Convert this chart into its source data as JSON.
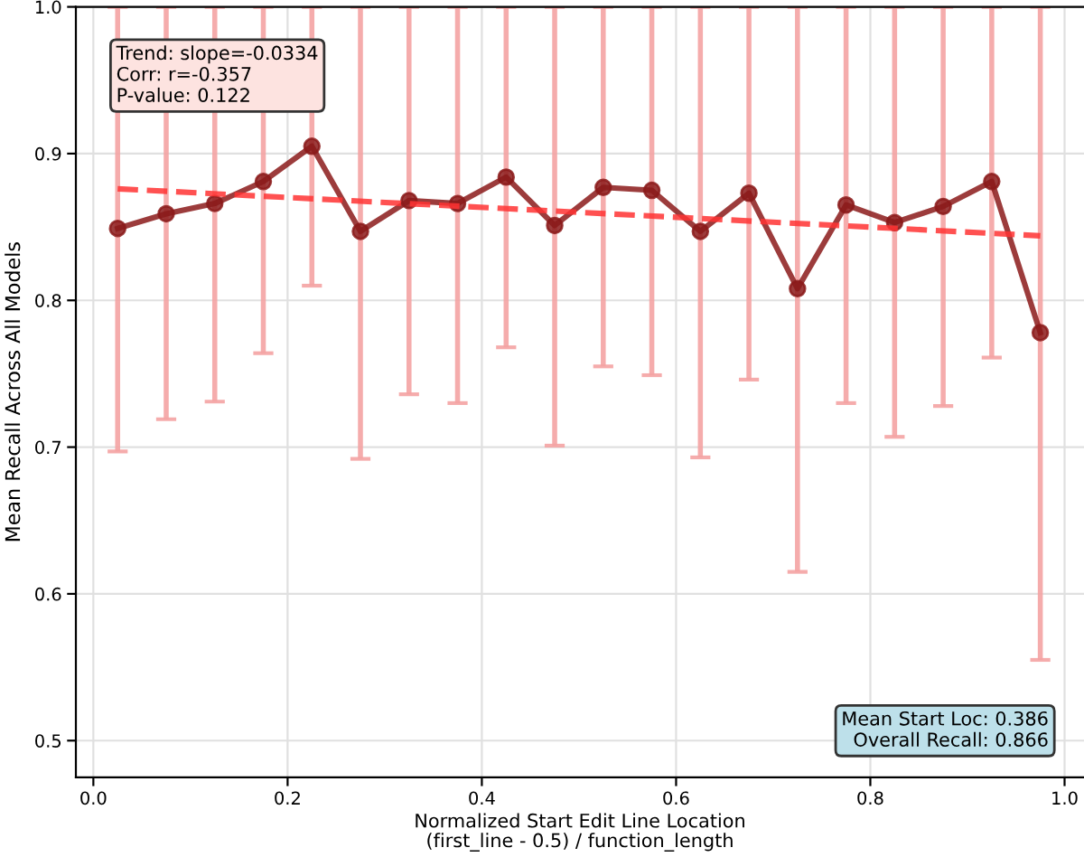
{
  "chart_data": {
    "type": "line",
    "xlabel": "Normalized Start Edit Line Location\n(first_line - 0.5) / function_length",
    "ylabel": "Mean Recall Across All Models",
    "x": [
      0.025,
      0.075,
      0.125,
      0.175,
      0.225,
      0.275,
      0.325,
      0.375,
      0.425,
      0.475,
      0.525,
      0.575,
      0.625,
      0.675,
      0.725,
      0.775,
      0.825,
      0.875,
      0.925,
      0.975
    ],
    "series": [
      {
        "color": "#8b1a1a",
        "marker": "circle",
        "line_style": "solid",
        "values": [
          0.849,
          0.859,
          0.866,
          0.881,
          0.905,
          0.847,
          0.868,
          0.866,
          0.884,
          0.851,
          0.877,
          0.875,
          0.847,
          0.873,
          0.808,
          0.865,
          0.853,
          0.864,
          0.881,
          0.778
        ],
        "errors": [
          [
            0.697,
            1.0
          ],
          [
            0.719,
            1.0
          ],
          [
            0.731,
            1.0
          ],
          [
            0.764,
            1.0
          ],
          [
            0.81,
            1.0
          ],
          [
            0.692,
            1.0
          ],
          [
            0.736,
            1.0
          ],
          [
            0.73,
            1.0
          ],
          [
            0.768,
            1.0
          ],
          [
            0.701,
            1.0
          ],
          [
            0.755,
            1.0
          ],
          [
            0.749,
            1.0
          ],
          [
            0.693,
            1.0
          ],
          [
            0.746,
            1.0
          ],
          [
            0.615,
            1.0
          ],
          [
            0.73,
            1.0
          ],
          [
            0.707,
            1.0
          ],
          [
            0.728,
            1.0
          ],
          [
            0.761,
            1.0
          ],
          [
            0.555,
            1.0
          ]
        ]
      },
      {
        "type": "line",
        "color": "#ff3333",
        "marker": "none",
        "line_style": "dashed",
        "x": [
          0.025,
          0.975
        ],
        "values": [
          0.876,
          0.844
        ]
      }
    ],
    "annotations": [
      "Trend: slope=-0.0334\nCorr: r=-0.357\nP-value: 0.122",
      "Mean Start Loc: 0.386\nOverall Recall: 0.866"
    ],
    "xlim": [
      -0.018,
      1.02
    ],
    "ylim": [
      0.475,
      1.0
    ],
    "xticks": [
      {
        "value": 0.0,
        "label": "0.0"
      },
      {
        "value": 0.2,
        "label": "0.2"
      },
      {
        "value": 0.4,
        "label": "0.4"
      },
      {
        "value": 0.6,
        "label": "0.6"
      },
      {
        "value": 0.8,
        "label": "0.8"
      },
      {
        "value": 1.0,
        "label": "1.0"
      }
    ],
    "yticks": [
      0.5,
      0.6,
      0.7,
      0.8,
      0.9,
      {
        "value": 1.0,
        "label": "1.0"
      }
    ],
    "grid": true,
    "legend": false
  }
}
